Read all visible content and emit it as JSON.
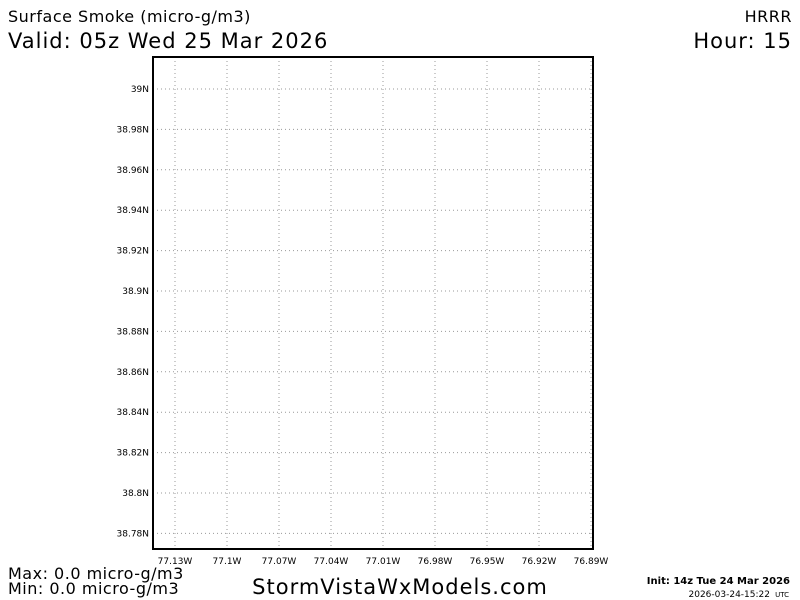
{
  "header": {
    "title": "Surface Smoke (micro-g/m3)",
    "valid": "Valid: 05z Wed 25 Mar 2026",
    "model": "HRRR",
    "hour": "Hour: 15"
  },
  "map": {
    "lat_labels": [
      "39N",
      "38.98N",
      "38.96N",
      "38.94N",
      "38.92N",
      "38.9N",
      "38.88N",
      "38.86N",
      "38.84N",
      "38.82N",
      "38.8N",
      "38.78N"
    ],
    "lon_labels": [
      "77.13W",
      "77.1W",
      "77.07W",
      "77.04W",
      "77.01W",
      "76.98W",
      "76.95W",
      "76.92W",
      "76.89W"
    ]
  },
  "footer": {
    "max": "Max: 0.0 micro-g/m3",
    "min": "Min: 0.0 micro-g/m3",
    "site": "StormVistaWxModels.com",
    "init": "Init: 14z Tue 24 Mar 2026",
    "timestamp": "2026-03-24-15:22",
    "timezone": "UTC"
  }
}
